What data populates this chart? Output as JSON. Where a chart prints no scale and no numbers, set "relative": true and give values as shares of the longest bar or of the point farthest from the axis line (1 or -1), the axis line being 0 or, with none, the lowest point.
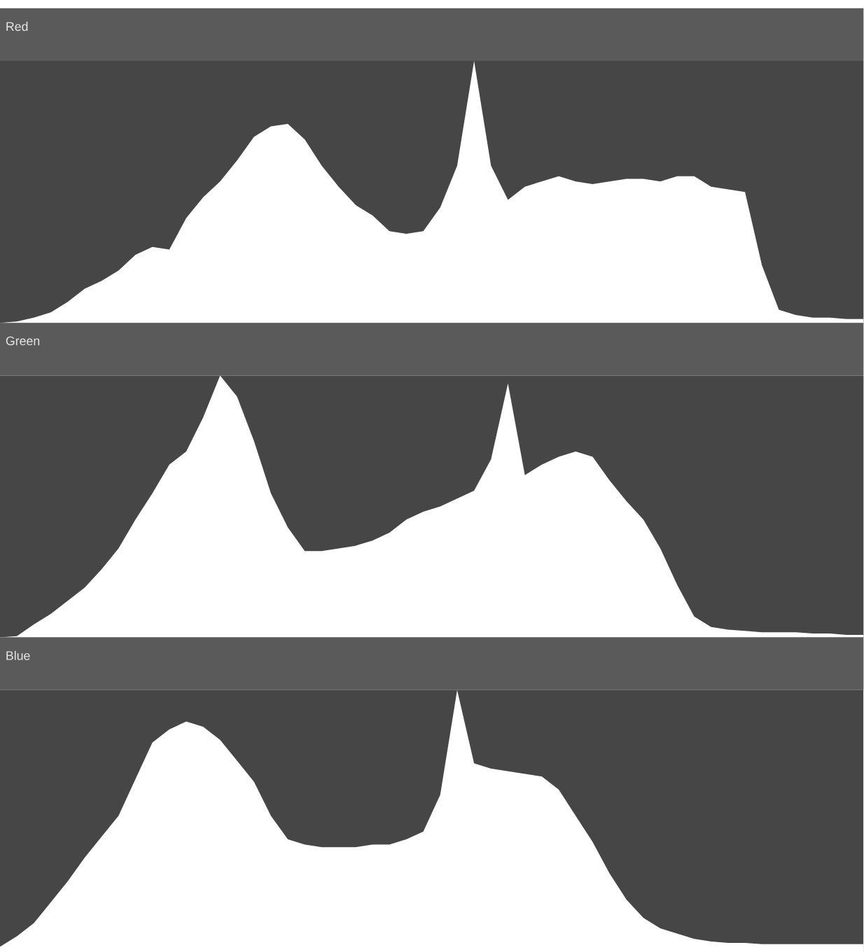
{
  "chart_data": [
    {
      "type": "area",
      "title": "Red",
      "relative": true,
      "color": "#ffffff",
      "categories": [
        null,
        null,
        null,
        null,
        null,
        null,
        null,
        null,
        null,
        null,
        null,
        null,
        null,
        null,
        null,
        null,
        null,
        null,
        null,
        null,
        null,
        null,
        null,
        null,
        null,
        null,
        null,
        null,
        null,
        null,
        null,
        null,
        null,
        null,
        null,
        null,
        null,
        null,
        null,
        null,
        null,
        null,
        null,
        null,
        null,
        null,
        null,
        null,
        null,
        null,
        null,
        null
      ],
      "values": [
        0,
        0.005,
        0.02,
        0.04,
        0.08,
        0.13,
        0.16,
        0.2,
        0.26,
        0.29,
        0.28,
        0.4,
        0.48,
        0.54,
        0.62,
        0.71,
        0.75,
        0.76,
        0.7,
        0.6,
        0.52,
        0.45,
        0.41,
        0.35,
        0.34,
        0.35,
        0.44,
        0.6,
        1,
        0.6,
        0.47,
        0.52,
        0.54,
        0.56,
        0.54,
        0.53,
        0.54,
        0.55,
        0.55,
        0.54,
        0.56,
        0.56,
        0.52,
        0.51,
        0.5,
        0.22,
        0.05,
        0.03,
        0.02,
        0.02,
        0.015,
        0.015
      ]
    },
    {
      "type": "area",
      "title": "Green",
      "relative": true,
      "color": "#ffffff",
      "categories": [
        null,
        null,
        null,
        null,
        null,
        null,
        null,
        null,
        null,
        null,
        null,
        null,
        null,
        null,
        null,
        null,
        null,
        null,
        null,
        null,
        null,
        null,
        null,
        null,
        null,
        null,
        null,
        null,
        null,
        null,
        null,
        null,
        null,
        null,
        null,
        null,
        null,
        null,
        null,
        null,
        null,
        null,
        null,
        null,
        null,
        null,
        null,
        null,
        null,
        null,
        null,
        null
      ],
      "values": [
        0,
        0.005,
        0.05,
        0.09,
        0.14,
        0.19,
        0.26,
        0.34,
        0.45,
        0.55,
        0.66,
        0.71,
        0.84,
        1,
        0.92,
        0.75,
        0.55,
        0.42,
        0.33,
        0.33,
        0.34,
        0.35,
        0.37,
        0.4,
        0.45,
        0.48,
        0.5,
        0.53,
        0.56,
        0.68,
        0.97,
        0.62,
        0.66,
        0.69,
        0.71,
        0.69,
        0.6,
        0.52,
        0.45,
        0.34,
        0.2,
        0.08,
        0.04,
        0.03,
        0.025,
        0.02,
        0.02,
        0.02,
        0.015,
        0.015,
        0.01,
        0.01
      ]
    },
    {
      "type": "area",
      "title": "Blue",
      "relative": true,
      "color": "#ffffff",
      "categories": [
        null,
        null,
        null,
        null,
        null,
        null,
        null,
        null,
        null,
        null,
        null,
        null,
        null,
        null,
        null,
        null,
        null,
        null,
        null,
        null,
        null,
        null,
        null,
        null,
        null,
        null,
        null,
        null,
        null,
        null,
        null,
        null,
        null,
        null,
        null,
        null,
        null,
        null,
        null,
        null,
        null,
        null,
        null,
        null,
        null,
        null,
        null,
        null,
        null,
        null,
        null,
        null
      ],
      "values": [
        0.02,
        0.06,
        0.11,
        0.19,
        0.27,
        0.36,
        0.44,
        0.52,
        0.66,
        0.8,
        0.85,
        0.88,
        0.86,
        0.81,
        0.73,
        0.65,
        0.52,
        0.43,
        0.41,
        0.4,
        0.4,
        0.4,
        0.41,
        0.41,
        0.43,
        0.46,
        0.6,
        1,
        0.72,
        0.7,
        0.69,
        0.68,
        0.67,
        0.62,
        0.52,
        0.42,
        0.3,
        0.2,
        0.13,
        0.09,
        0.07,
        0.05,
        0.04,
        0.035,
        0.035,
        0.03,
        0.03,
        0.03,
        0.03,
        0.03,
        0.03,
        0.03
      ]
    }
  ]
}
